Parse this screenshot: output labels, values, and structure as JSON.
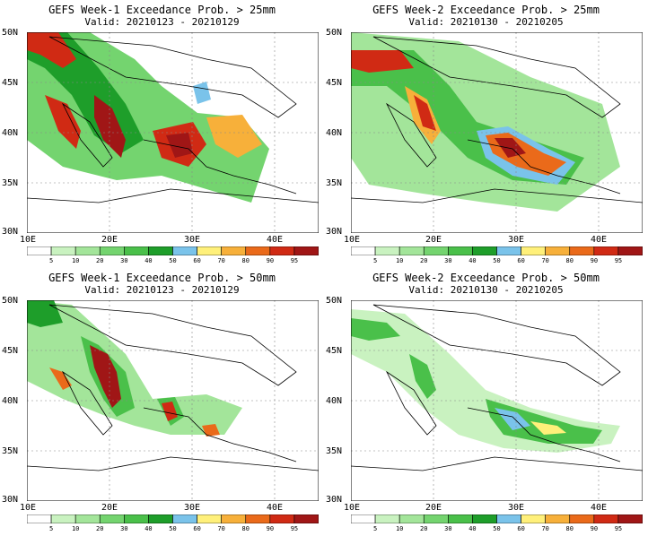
{
  "colorbar": {
    "colors": [
      "#ffffff",
      "#c9f2c0",
      "#a3e59a",
      "#74d46f",
      "#4ac04a",
      "#1e9e2a",
      "#7ac3ea",
      "#fff07a",
      "#f7b03a",
      "#ea6a1a",
      "#d02a14",
      "#a01616"
    ],
    "labels": [
      "5",
      "10",
      "20",
      "30",
      "40",
      "50",
      "60",
      "70",
      "80",
      "90",
      "95"
    ]
  },
  "axes": {
    "y_labels": [
      "50N",
      "45N",
      "40N",
      "35N",
      "30N"
    ],
    "x_labels": [
      "10E",
      "20E",
      "30E",
      "40E"
    ]
  },
  "panels": [
    {
      "title": "GEFS Week-1 Exceedance Prob. > 25mm",
      "valid": "Valid: 20210123 - 20210129"
    },
    {
      "title": "GEFS Week-2 Exceedance Prob. > 25mm",
      "valid": "Valid: 20210130 - 20210205"
    },
    {
      "title": "GEFS Week-1 Exceedance Prob. > 50mm",
      "valid": "Valid: 20210123 - 20210129"
    },
    {
      "title": "GEFS Week-2 Exceedance Prob. > 50mm",
      "valid": "Valid: 20210130 - 20210205"
    }
  ]
}
